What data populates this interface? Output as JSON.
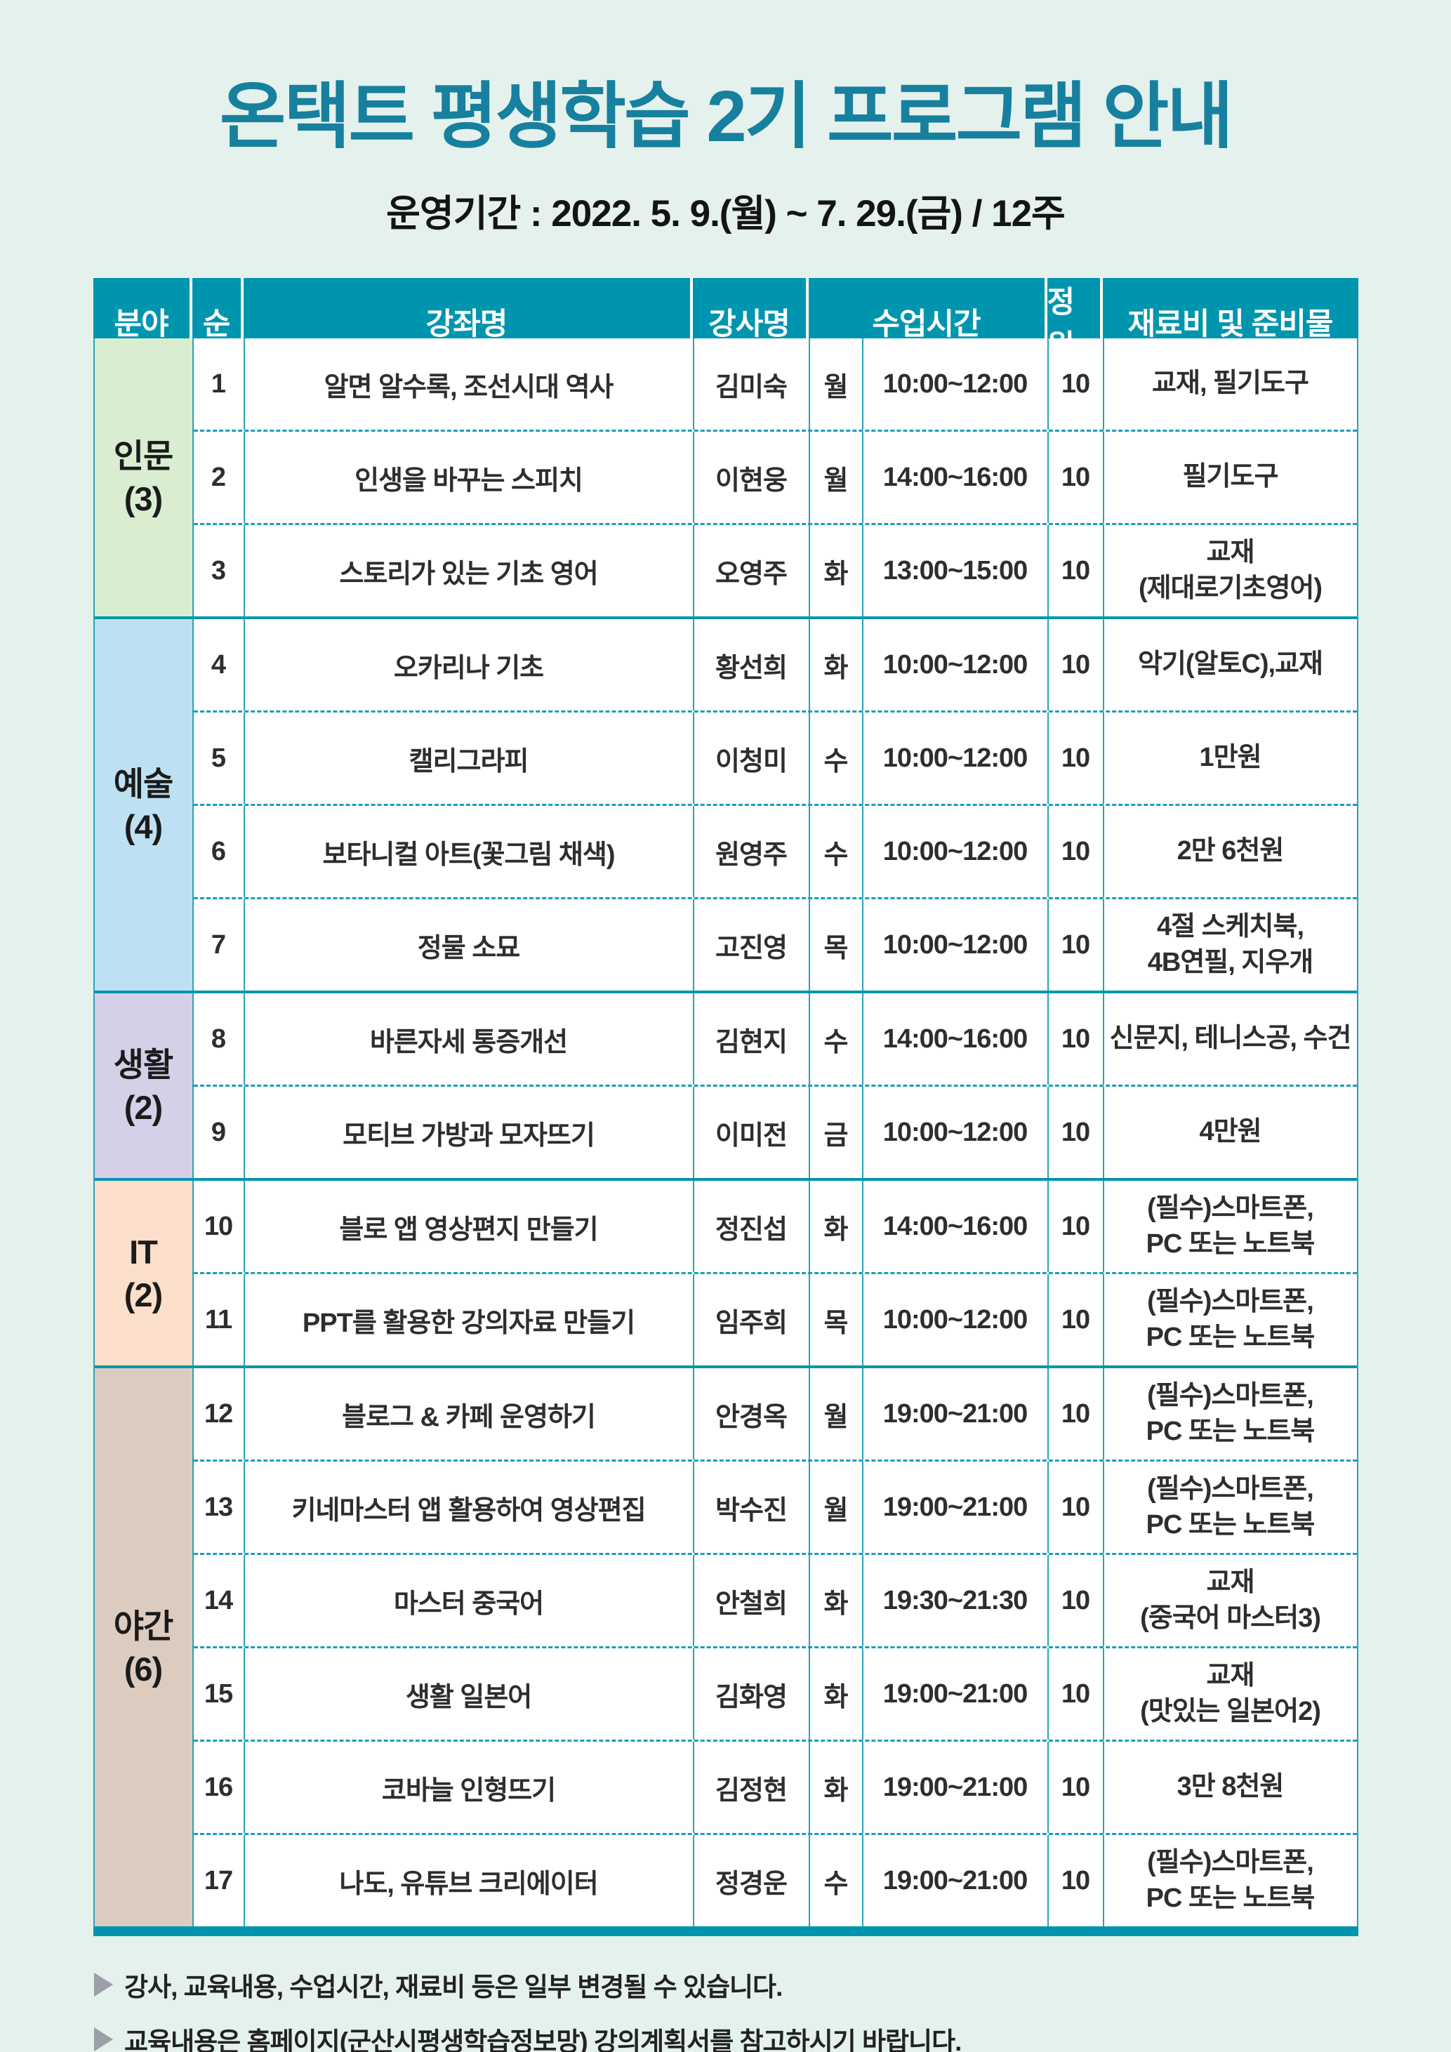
{
  "page": {
    "title": "온택트 평생학습 2기 프로그램 안내",
    "subtitle": "운영기간 : 2022. 5. 9.(월) ~ 7. 29.(금) / 12주"
  },
  "colors": {
    "background": "#e4f1ec",
    "title_text": "#17809e",
    "header_bg": "#0095ae",
    "grid_line": "#2aa2b9",
    "dashed_line": "#189fb8"
  },
  "table": {
    "headers": {
      "category": "분야",
      "no": "순",
      "course": "강좌명",
      "instructor": "강사명",
      "time": "수업시간",
      "capacity": "정원",
      "materials": "재료비 및 준비물"
    },
    "groups": [
      {
        "category": "인문",
        "count": "(3)",
        "color": "#d9edd1",
        "rows": [
          {
            "no": "1",
            "course": "알면 알수록, 조선시대 역사",
            "instructor": "김미숙",
            "day": "월",
            "time": "10:00~12:00",
            "capacity": "10",
            "materials": "교재, 필기도구"
          },
          {
            "no": "2",
            "course": "인생을 바꾸는 스피치",
            "instructor": "이현웅",
            "day": "월",
            "time": "14:00~16:00",
            "capacity": "10",
            "materials": "필기도구"
          },
          {
            "no": "3",
            "course": "스토리가 있는 기초 영어",
            "instructor": "오영주",
            "day": "화",
            "time": "13:00~15:00",
            "capacity": "10",
            "materials": "교재\n(제대로기초영어)"
          }
        ]
      },
      {
        "category": "예술",
        "count": "(4)",
        "color": "#bde1f2",
        "rows": [
          {
            "no": "4",
            "course": "오카리나 기초",
            "instructor": "황선희",
            "day": "화",
            "time": "10:00~12:00",
            "capacity": "10",
            "materials": "악기(알토C),교재"
          },
          {
            "no": "5",
            "course": "캘리그라피",
            "instructor": "이청미",
            "day": "수",
            "time": "10:00~12:00",
            "capacity": "10",
            "materials": "1만원"
          },
          {
            "no": "6",
            "course": "보타니컬 아트(꽃그림 채색)",
            "instructor": "원영주",
            "day": "수",
            "time": "10:00~12:00",
            "capacity": "10",
            "materials": "2만 6천원"
          },
          {
            "no": "7",
            "course": "정물 소묘",
            "instructor": "고진영",
            "day": "목",
            "time": "10:00~12:00",
            "capacity": "10",
            "materials": "4절 스케치북,\n4B연필, 지우개"
          }
        ]
      },
      {
        "category": "생활",
        "count": "(2)",
        "color": "#d6cfe8",
        "rows": [
          {
            "no": "8",
            "course": "바른자세 통증개선",
            "instructor": "김현지",
            "day": "수",
            "time": "14:00~16:00",
            "capacity": "10",
            "materials": "신문지, 테니스공, 수건"
          },
          {
            "no": "9",
            "course": "모티브 가방과 모자뜨기",
            "instructor": "이미전",
            "day": "금",
            "time": "10:00~12:00",
            "capacity": "10",
            "materials": "4만원"
          }
        ]
      },
      {
        "category": "IT",
        "count": "(2)",
        "color": "#fbdfca",
        "rows": [
          {
            "no": "10",
            "course": "블로 앱 영상편지 만들기",
            "instructor": "정진섭",
            "day": "화",
            "time": "14:00~16:00",
            "capacity": "10",
            "materials": "(필수)스마트폰,\nPC 또는 노트북"
          },
          {
            "no": "11",
            "course": "PPT를 활용한 강의자료 만들기",
            "instructor": "임주희",
            "day": "목",
            "time": "10:00~12:00",
            "capacity": "10",
            "materials": "(필수)스마트폰,\nPC 또는 노트북"
          }
        ]
      },
      {
        "category": "야간",
        "count": "(6)",
        "color": "#dcccc0",
        "rows": [
          {
            "no": "12",
            "course": "블로그 & 카페 운영하기",
            "instructor": "안경옥",
            "day": "월",
            "time": "19:00~21:00",
            "capacity": "10",
            "materials": "(필수)스마트폰,\nPC 또는 노트북"
          },
          {
            "no": "13",
            "course": "키네마스터 앱 활용하여 영상편집",
            "instructor": "박수진",
            "day": "월",
            "time": "19:00~21:00",
            "capacity": "10",
            "materials": "(필수)스마트폰,\nPC 또는 노트북"
          },
          {
            "no": "14",
            "course": "마스터 중국어",
            "instructor": "안철희",
            "day": "화",
            "time": "19:30~21:30",
            "capacity": "10",
            "materials": "교재\n(중국어 마스터3)"
          },
          {
            "no": "15",
            "course": "생활 일본어",
            "instructor": "김화영",
            "day": "화",
            "time": "19:00~21:00",
            "capacity": "10",
            "materials": "교재\n(맛있는 일본어2)"
          },
          {
            "no": "16",
            "course": "코바늘 인형뜨기",
            "instructor": "김정현",
            "day": "화",
            "time": "19:00~21:00",
            "capacity": "10",
            "materials": "3만 8천원"
          },
          {
            "no": "17",
            "course": "나도, 유튜브 크리에이터",
            "instructor": "정경운",
            "day": "수",
            "time": "19:00~21:00",
            "capacity": "10",
            "materials": "(필수)스마트폰,\nPC 또는 노트북"
          }
        ]
      }
    ]
  },
  "footer": {
    "notes": [
      "강사, 교육내용, 수업시간, 재료비 등은 일부 변경될 수 있습니다.",
      "교육내용은 홈페이지(군산시평생학습정보망) 강의계획서를 참고하시기 바랍니다."
    ]
  }
}
